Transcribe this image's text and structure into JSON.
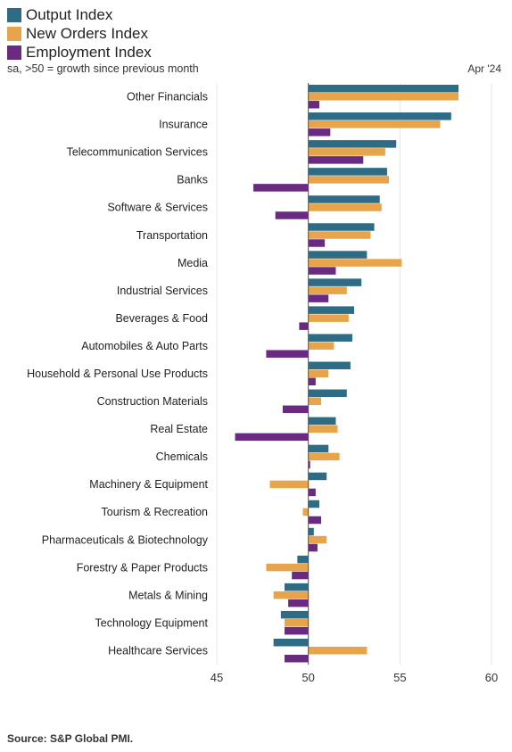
{
  "legend": {
    "items": [
      {
        "label": "Output Index",
        "color": "#2e6b85"
      },
      {
        "label": "New Orders Index",
        "color": "#e8a44a"
      },
      {
        "label": "Employment Index",
        "color": "#6b2a82"
      }
    ]
  },
  "subtitle": "sa, >50 = growth since previous month",
  "period": "Apr '24",
  "source": "Source: S&P Global PMI.",
  "chart_data": {
    "type": "bar",
    "orientation": "horizontal",
    "baseline": 50,
    "xlim": [
      45,
      60
    ],
    "xticks": [
      "45",
      "50",
      "55",
      "60"
    ],
    "grid": true,
    "legend_position": "top-left",
    "categories": [
      "Other Financials",
      "Insurance",
      "Telecommunication Services",
      "Banks",
      "Software & Services",
      "Transportation",
      "Media",
      "Industrial Services",
      "Beverages & Food",
      "Automobiles & Auto Parts",
      "Household & Personal Use Products",
      "Construction Materials",
      "Real Estate",
      "Chemicals",
      "Machinery & Equipment",
      "Tourism & Recreation",
      "Pharmaceuticals & Biotechnology",
      "Forestry & Paper Products",
      "Metals & Mining",
      "Technology Equipment",
      "Healthcare Services"
    ],
    "series": [
      {
        "name": "Output Index",
        "color": "#2e6b85",
        "values": [
          58.2,
          57.8,
          54.8,
          54.3,
          53.9,
          53.6,
          53.2,
          52.9,
          52.5,
          52.4,
          52.3,
          52.1,
          51.5,
          51.1,
          51.0,
          50.6,
          50.3,
          49.4,
          48.7,
          48.5,
          48.1
        ]
      },
      {
        "name": "New Orders Index",
        "color": "#e8a44a",
        "values": [
          58.2,
          57.2,
          54.2,
          54.4,
          54.0,
          53.4,
          55.1,
          52.1,
          52.2,
          51.4,
          51.1,
          50.7,
          51.6,
          51.7,
          47.9,
          49.7,
          51.0,
          47.7,
          48.1,
          48.7,
          53.2
        ]
      },
      {
        "name": "Employment Index",
        "color": "#6b2a82",
        "values": [
          50.6,
          51.2,
          53.0,
          47.0,
          48.2,
          50.9,
          51.5,
          51.1,
          49.5,
          47.7,
          50.4,
          48.6,
          46.0,
          50.1,
          50.4,
          50.7,
          50.5,
          49.1,
          48.9,
          48.7,
          48.7
        ]
      }
    ]
  }
}
